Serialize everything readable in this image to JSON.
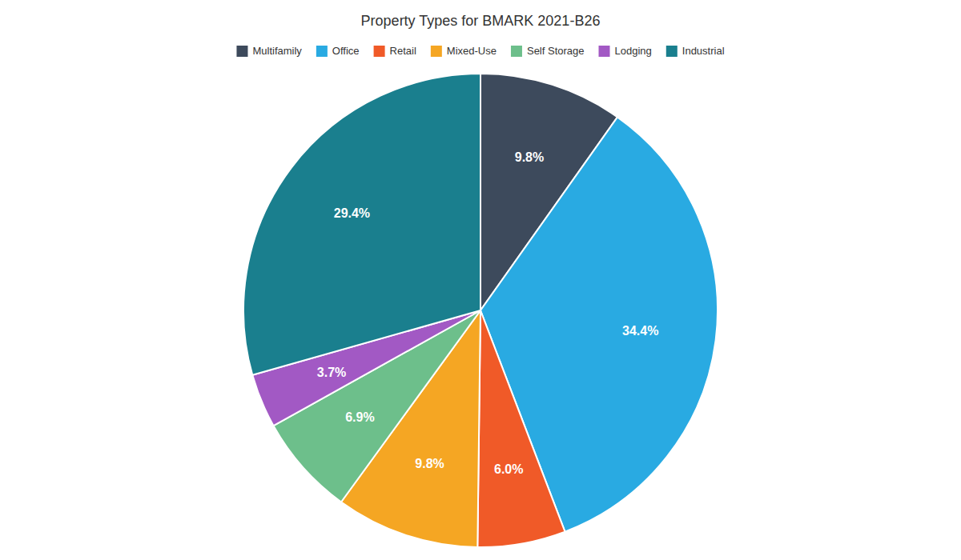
{
  "chart_data": {
    "type": "pie",
    "title": "Property Types for BMARK 2021-B26",
    "categories": [
      "Multifamily",
      "Office",
      "Retail",
      "Mixed-Use",
      "Self Storage",
      "Lodging",
      "Industrial"
    ],
    "values": [
      9.8,
      34.4,
      6.0,
      9.8,
      6.9,
      3.7,
      29.4
    ],
    "value_labels": [
      "9.8%",
      "34.4%",
      "6.0%",
      "9.8%",
      "6.9%",
      "3.7%",
      "29.4%"
    ],
    "colors": [
      "#3d4a5c",
      "#29aae2",
      "#f05a28",
      "#f5a623",
      "#6dbf8b",
      "#a259c4",
      "#1a7f8e"
    ],
    "data_labels": true,
    "legend": "top"
  }
}
